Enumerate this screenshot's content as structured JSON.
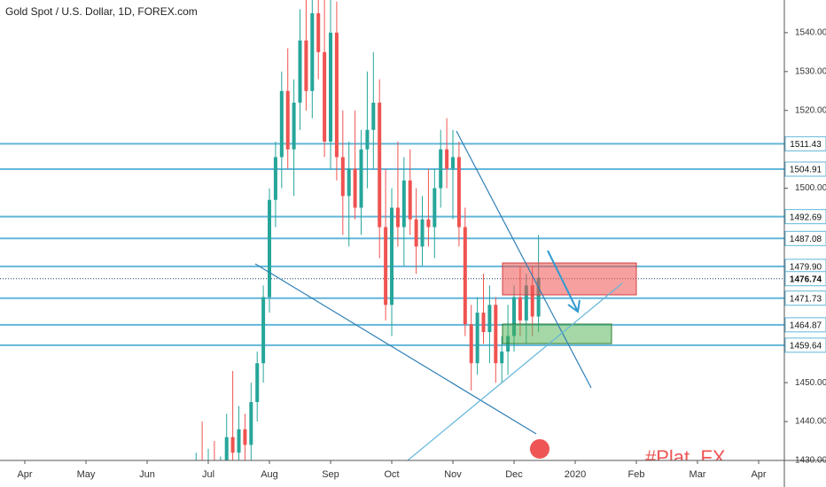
{
  "chart_data": {
    "type": "candlestick",
    "title": "Gold Spot / U.S. Dollar, 1D, FOREX.com",
    "x": [
      6.8,
      6.9,
      7.0,
      7.1,
      7.2,
      7.3,
      7.4,
      7.5,
      7.6,
      7.7,
      7.8,
      7.9,
      8.0,
      8.1,
      8.2,
      8.3,
      8.4,
      8.5,
      8.6,
      8.7,
      8.8,
      8.9,
      9.0,
      9.1,
      9.2,
      9.3,
      9.4,
      9.5,
      9.6,
      9.7,
      9.8,
      9.9,
      10.0,
      10.1,
      10.2,
      10.3,
      10.4,
      10.5,
      10.6,
      10.7,
      10.8,
      10.9,
      11.0,
      11.1,
      11.2,
      11.3,
      11.4,
      11.5,
      11.6,
      11.7,
      11.8,
      11.9,
      12.0,
      12.1,
      12.2,
      12.3,
      12.4
    ],
    "open": [
      1425,
      1428,
      1426,
      1430,
      1425,
      1428,
      1436,
      1432,
      1438,
      1434,
      1445,
      1455,
      1472,
      1497,
      1508,
      1525,
      1510,
      1522,
      1538,
      1525,
      1545,
      1535,
      1512,
      1540,
      1508,
      1498,
      1505,
      1495,
      1510,
      1515,
      1522,
      1490,
      1470,
      1495,
      1490,
      1502,
      1492,
      1485,
      1492,
      1490,
      1500,
      1510,
      1505,
      1508,
      1490,
      1465,
      1455,
      1468,
      1463,
      1470,
      1455,
      1458,
      1462,
      1472,
      1466,
      1475,
      1467
    ],
    "high": [
      1432,
      1440,
      1433,
      1435,
      1431,
      1442,
      1453,
      1444,
      1442,
      1450,
      1458,
      1475,
      1500,
      1512,
      1530,
      1536,
      1528,
      1546,
      1552,
      1550,
      1560,
      1555,
      1560,
      1548,
      1520,
      1512,
      1520,
      1515,
      1530,
      1535,
      1528,
      1505,
      1500,
      1512,
      1508,
      1510,
      1500,
      1498,
      1505,
      1505,
      1515,
      1518,
      1515,
      1512,
      1495,
      1470,
      1472,
      1478,
      1475,
      1472,
      1462,
      1470,
      1475,
      1480,
      1478,
      1480,
      1488
    ],
    "low": [
      1420,
      1424,
      1420,
      1422,
      1418,
      1425,
      1428,
      1425,
      1428,
      1430,
      1440,
      1450,
      1468,
      1490,
      1500,
      1505,
      1498,
      1515,
      1520,
      1518,
      1528,
      1508,
      1505,
      1502,
      1488,
      1485,
      1492,
      1488,
      1500,
      1505,
      1482,
      1466,
      1462,
      1485,
      1480,
      1488,
      1478,
      1480,
      1485,
      1482,
      1495,
      1500,
      1492,
      1485,
      1462,
      1448,
      1452,
      1460,
      1455,
      1450,
      1450,
      1452,
      1458,
      1462,
      1460,
      1462,
      1463
    ],
    "close": [
      1428,
      1426,
      1430,
      1425,
      1428,
      1436,
      1432,
      1438,
      1434,
      1445,
      1455,
      1472,
      1497,
      1508,
      1525,
      1510,
      1522,
      1538,
      1525,
      1545,
      1535,
      1512,
      1540,
      1508,
      1498,
      1505,
      1495,
      1510,
      1515,
      1522,
      1490,
      1470,
      1495,
      1490,
      1502,
      1492,
      1485,
      1492,
      1490,
      1500,
      1510,
      1505,
      1508,
      1490,
      1465,
      1455,
      1468,
      1463,
      1470,
      1455,
      1458,
      1462,
      1472,
      1466,
      1475,
      1467,
      1477
    ],
    "up_color": "#26a69a",
    "down_color": "#ef5350",
    "xlim": [
      3.594,
      16.42
    ],
    "xticks": [
      {
        "value": 4,
        "label": "Apr"
      },
      {
        "value": 5,
        "label": "May"
      },
      {
        "value": 6,
        "label": "Jun"
      },
      {
        "value": 7,
        "label": "Jul"
      },
      {
        "value": 8,
        "label": "Aug"
      },
      {
        "value": 9,
        "label": "Sep"
      },
      {
        "value": 10,
        "label": "Oct"
      },
      {
        "value": 11,
        "label": "Nov"
      },
      {
        "value": 12,
        "label": "Dec"
      },
      {
        "value": 13,
        "label": "2020"
      },
      {
        "value": 14,
        "label": "Feb"
      },
      {
        "value": 15,
        "label": "Mar"
      },
      {
        "value": 16,
        "label": "Apr"
      }
    ],
    "ylim": [
      1430,
      1548.4
    ],
    "yticks": [
      {
        "value": 1540,
        "label": "1540.00"
      },
      {
        "value": 1530,
        "label": "1530.00"
      },
      {
        "value": 1520,
        "label": "1520.00"
      },
      {
        "value": 1500,
        "label": "1500.00"
      },
      {
        "value": 1450,
        "label": "1450.00"
      },
      {
        "value": 1440,
        "label": "1440.00"
      },
      {
        "value": 1430,
        "label": "1430.00"
      }
    ],
    "levels": {
      "values": [
        1511.43,
        1504.91,
        1492.69,
        1487.08,
        1479.9,
        1471.73,
        1464.87,
        1459.64
      ],
      "value_labels": [
        "1511.43",
        "1504.91",
        "1492.69",
        "1487.08",
        "1479.90",
        "1471.73",
        "1464.87",
        "1459.64"
      ],
      "color": "#62b6da"
    },
    "current_price": {
      "value": 1476.74,
      "color": "#1e3d6b"
    },
    "watermark": "#Plat_FX"
  }
}
